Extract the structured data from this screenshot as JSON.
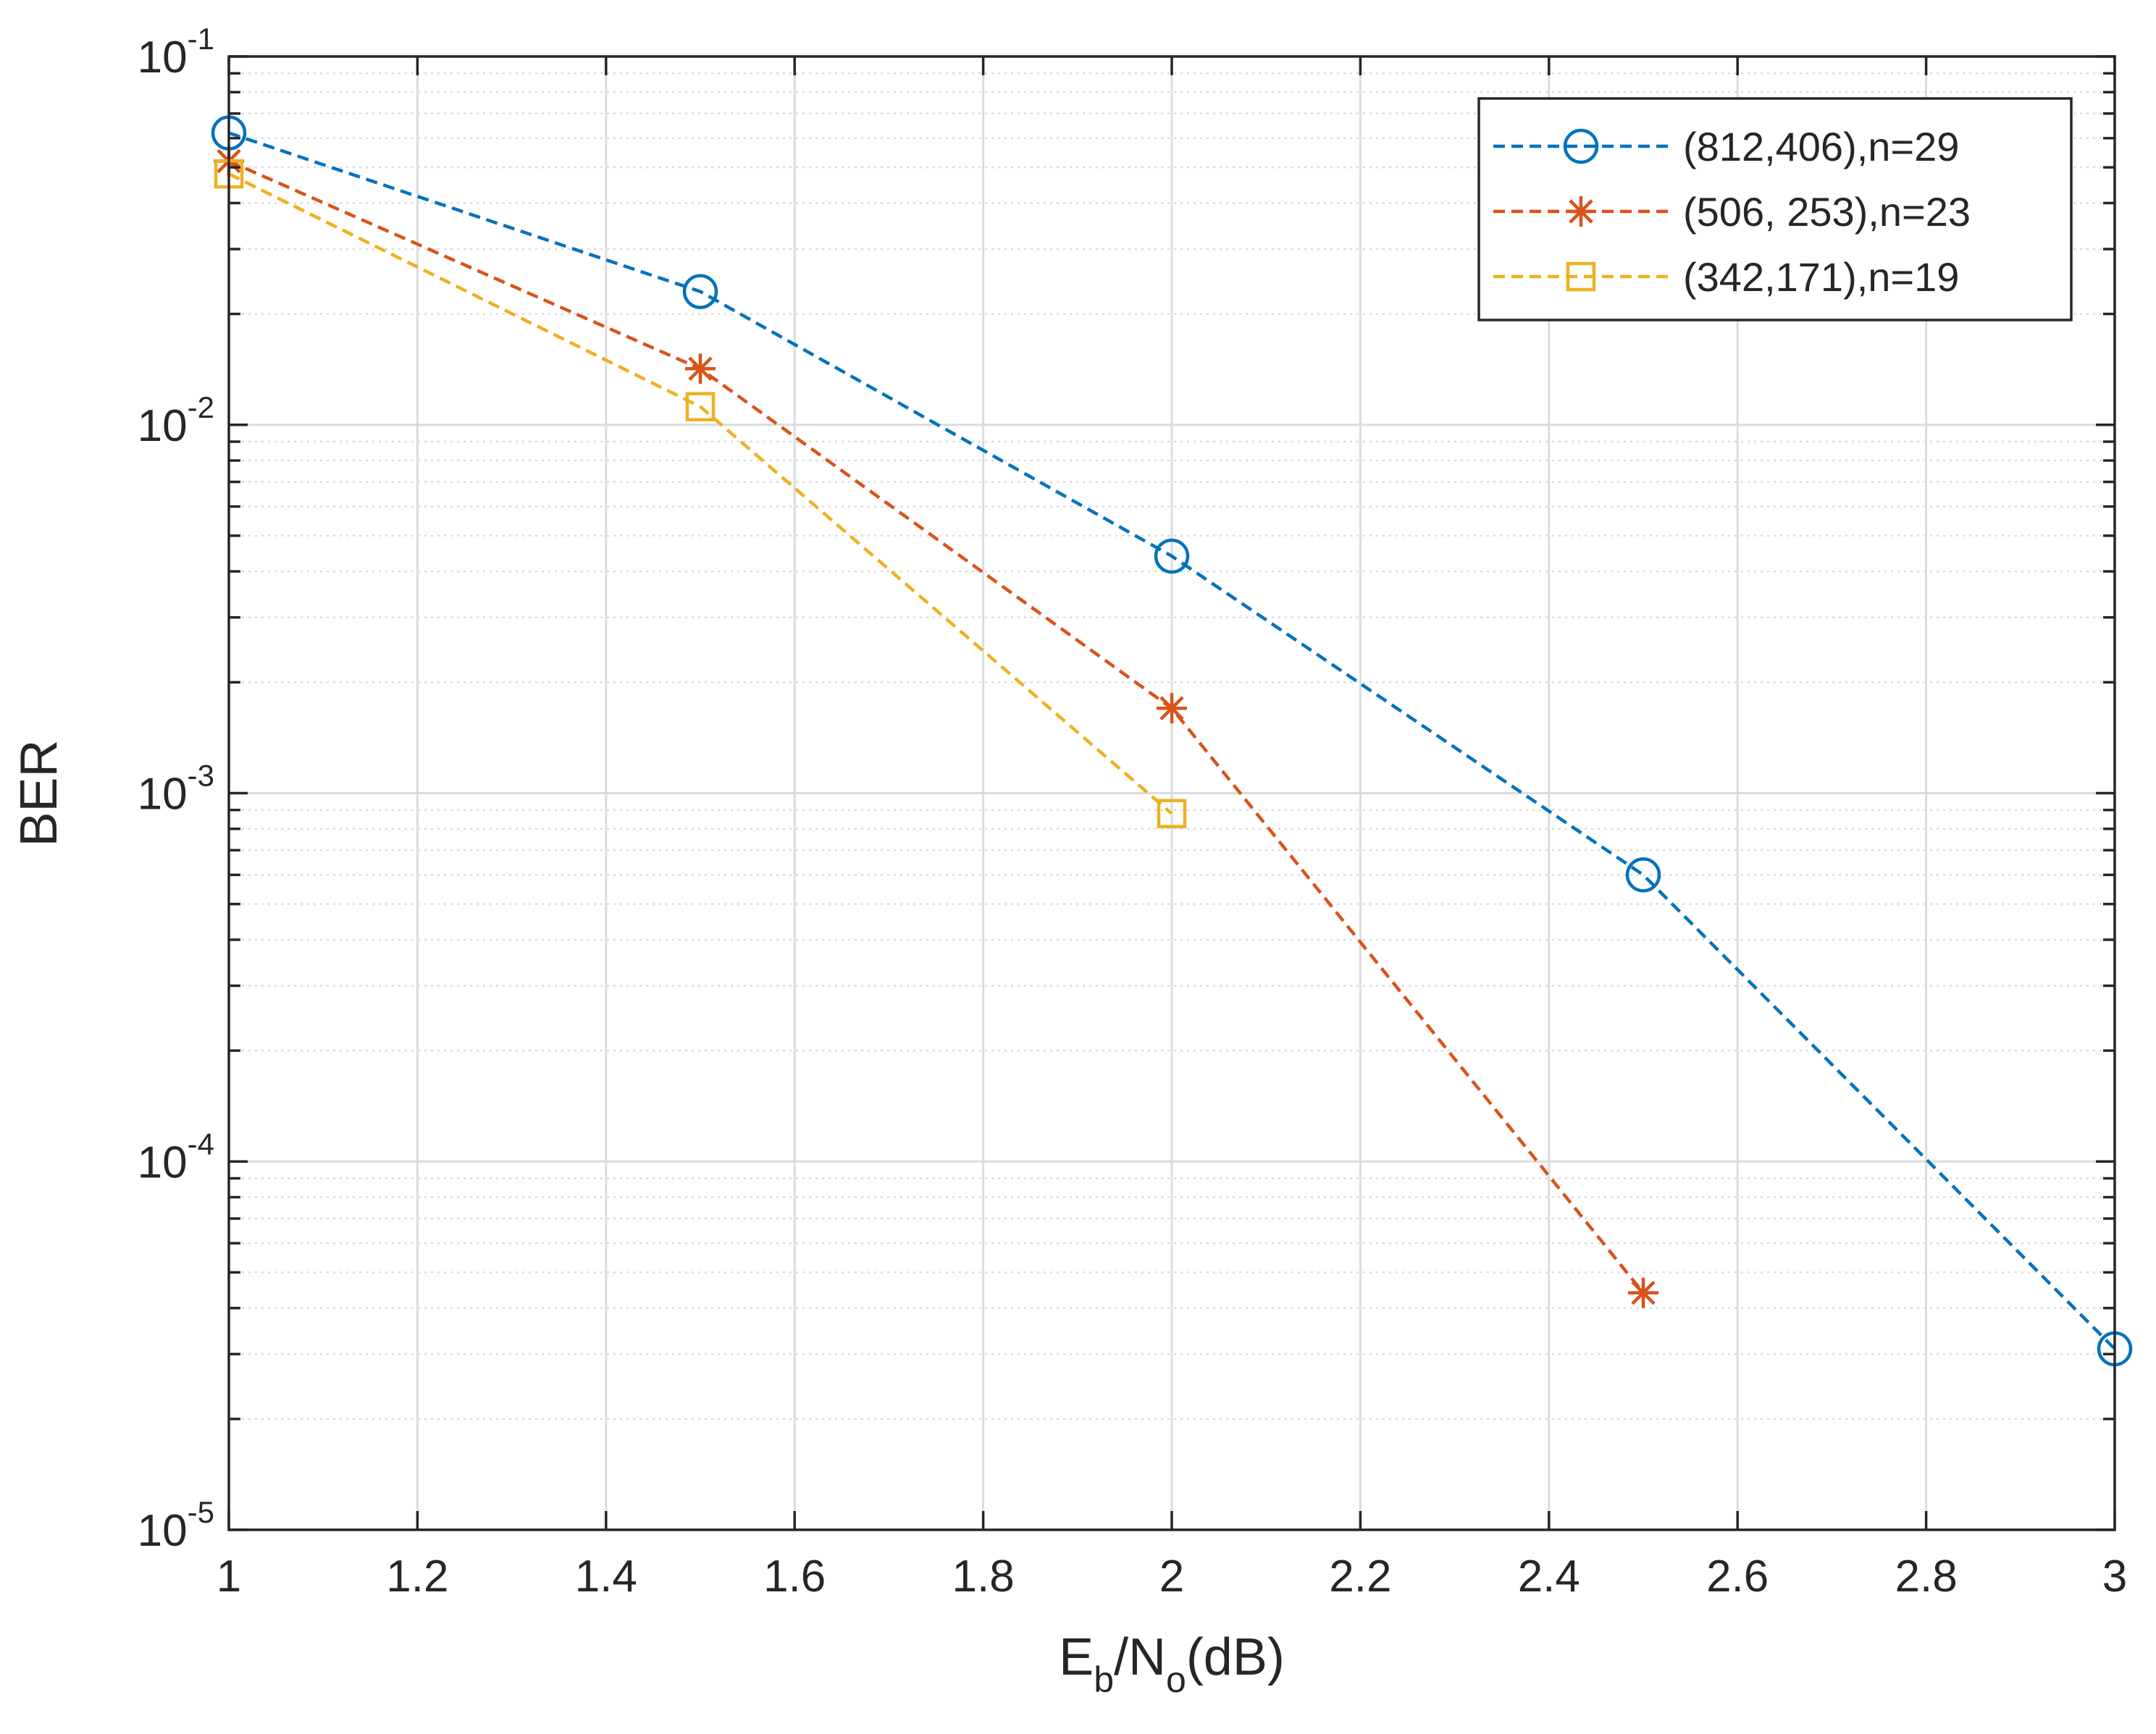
{
  "chart_data": {
    "type": "line",
    "title": "",
    "xlabel": {
      "main": "E",
      "sub1": "b",
      "mid": "/N",
      "sub2": "o",
      "tail": "(dB)"
    },
    "ylabel": "BER",
    "xlim": [
      1,
      3
    ],
    "ylim": [
      1e-05,
      0.1
    ],
    "yscale": "log",
    "grid": true,
    "minor_grid": true,
    "legend_position": "top-right",
    "x_ticks": [
      "1",
      "1.2",
      "1.4",
      "1.6",
      "1.8",
      "2",
      "2.2",
      "2.4",
      "2.6",
      "2.8",
      "3"
    ],
    "y_ticks": [
      {
        "value": 0.1,
        "base": "10",
        "exp": "-1"
      },
      {
        "value": 0.01,
        "base": "10",
        "exp": "-2"
      },
      {
        "value": 0.001,
        "base": "10",
        "exp": "-3"
      },
      {
        "value": 0.0001,
        "base": "10",
        "exp": "-4"
      },
      {
        "value": 1e-05,
        "base": "10",
        "exp": "-5"
      }
    ],
    "series": [
      {
        "name": "(812,406),n=29",
        "color": "#0072bd",
        "marker": "circle",
        "line_style": "dashed",
        "x": [
          1,
          1.5,
          2,
          2.5,
          3
        ],
        "y": [
          0.062,
          0.023,
          0.0044,
          0.0006,
          3.1e-05
        ]
      },
      {
        "name": "(506, 253),n=23",
        "color": "#d95319",
        "marker": "asterisk",
        "line_style": "dashed",
        "x": [
          1,
          1.5,
          2,
          2.5
        ],
        "y": [
          0.052,
          0.0142,
          0.0017,
          4.4e-05
        ]
      },
      {
        "name": "(342,171),n=19",
        "color": "#edb120",
        "marker": "square",
        "line_style": "dashed",
        "x": [
          1,
          1.5,
          2
        ],
        "y": [
          0.048,
          0.0112,
          0.00088
        ]
      }
    ]
  }
}
